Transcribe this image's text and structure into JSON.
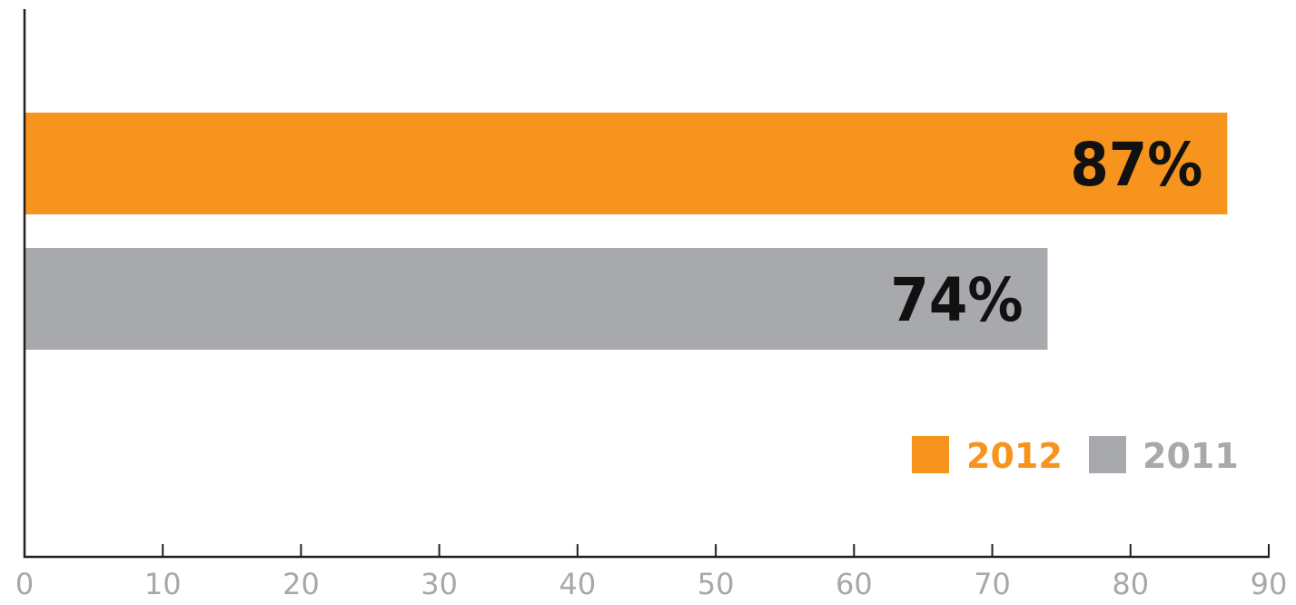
{
  "chart_data": {
    "type": "bar",
    "orientation": "horizontal",
    "title": "",
    "xlabel": "",
    "ylabel": "",
    "xlim": [
      0,
      90
    ],
    "xticks": [
      0,
      10,
      20,
      30,
      40,
      50,
      60,
      70,
      80,
      90
    ],
    "grid": false,
    "legend_position": "bottom-right",
    "series": [
      {
        "name": "2012",
        "value": 87,
        "label": "87%",
        "color": "#f7941d"
      },
      {
        "name": "2011",
        "value": 74,
        "label": "74%",
        "color": "#a7a9ac"
      }
    ],
    "legend_colors": {
      "2012": "#f7941d",
      "2011": "#a7a9ac"
    }
  }
}
